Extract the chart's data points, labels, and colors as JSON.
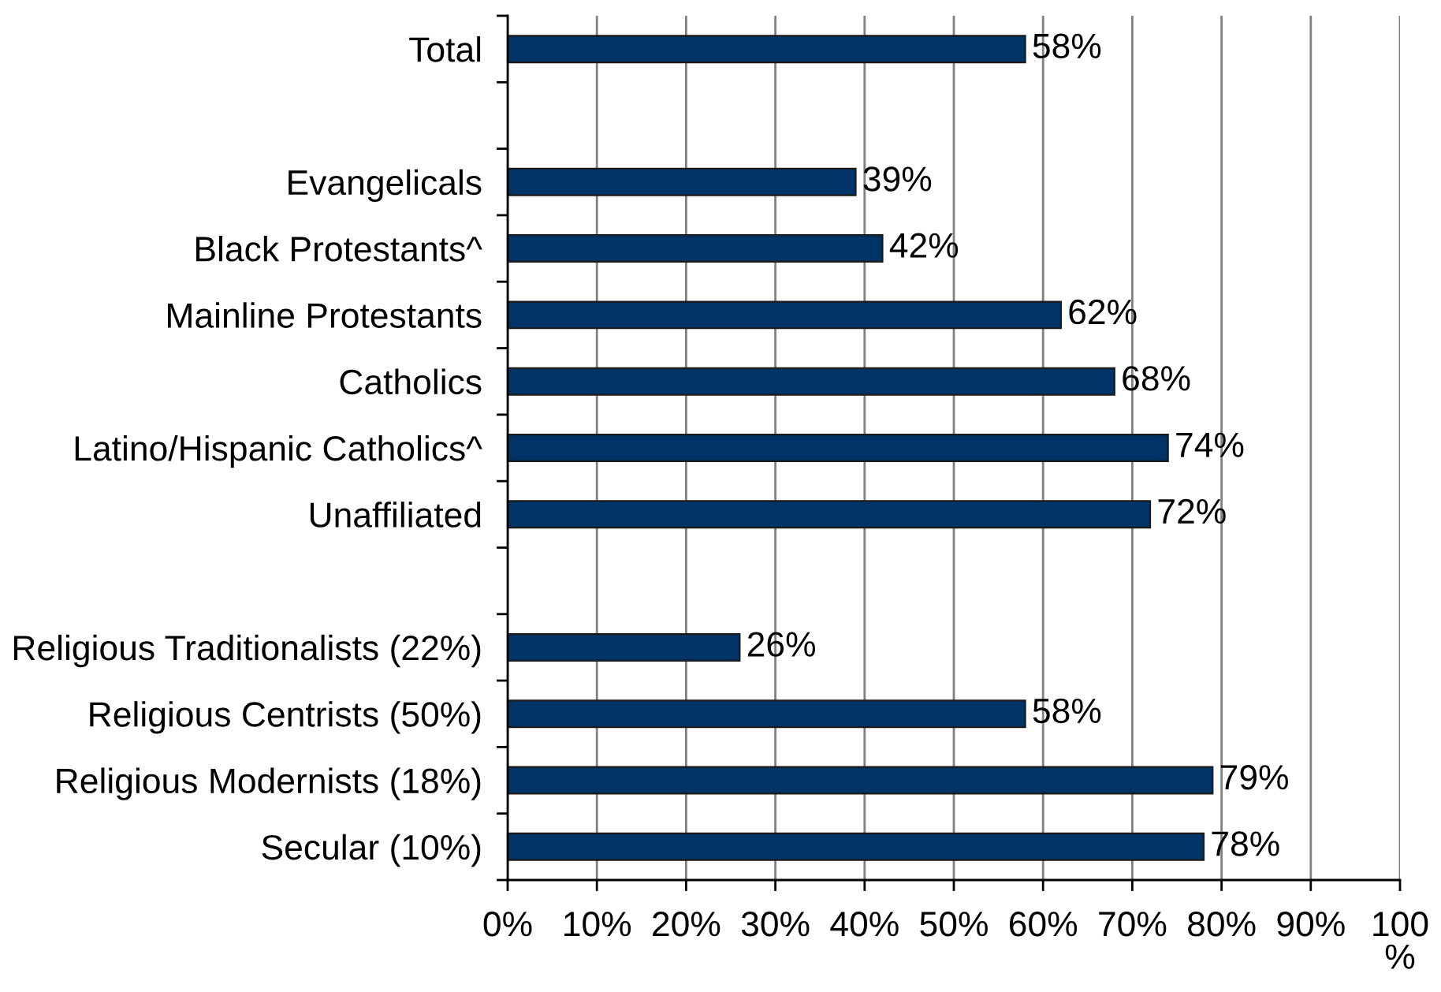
{
  "chart_data": {
    "type": "bar",
    "orientation": "horizontal",
    "categories": [
      "Total",
      null,
      "Evangelicals",
      "Black Protestants^",
      "Mainline Protestants",
      "Catholics",
      "Latino/Hispanic Catholics^",
      "Unaffiliated",
      null,
      "Religious Traditionalists (22%)",
      "Religious Centrists (50%)",
      "Religious Modernists (18%)",
      "Secular (10%)"
    ],
    "values": [
      58,
      null,
      39,
      42,
      62,
      68,
      74,
      72,
      null,
      26,
      58,
      79,
      78
    ],
    "value_labels": [
      "58%",
      null,
      "39%",
      "42%",
      "62%",
      "68%",
      "74%",
      "72%",
      null,
      "26%",
      "58%",
      "79%",
      "78%"
    ],
    "color": "#003366",
    "xlim": [
      0,
      100
    ],
    "xticks": [
      {
        "value": 0,
        "label": "0%"
      },
      {
        "value": 10,
        "label": "10%"
      },
      {
        "value": 20,
        "label": "20%"
      },
      {
        "value": 30,
        "label": "30%"
      },
      {
        "value": 40,
        "label": "40%"
      },
      {
        "value": 50,
        "label": "50%"
      },
      {
        "value": 60,
        "label": "60%"
      },
      {
        "value": 70,
        "label": "70%"
      },
      {
        "value": 80,
        "label": "80%"
      },
      {
        "value": 90,
        "label": "90%"
      },
      {
        "value": 100,
        "label": "100%"
      }
    ],
    "grid": "x"
  }
}
